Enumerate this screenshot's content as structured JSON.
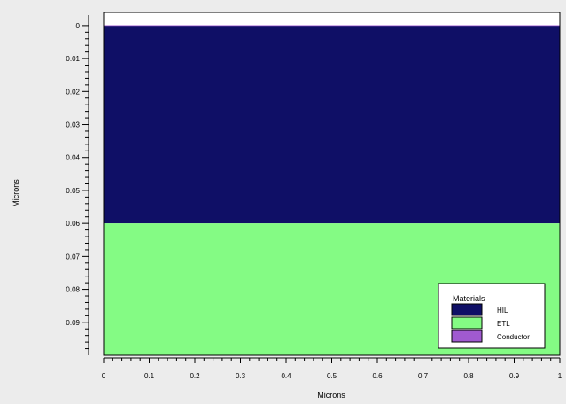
{
  "chart_data": {
    "type": "area",
    "description_type": "material layer cross-section",
    "xlabel": "Microns",
    "ylabel": "Microns",
    "xlim": [
      0,
      1
    ],
    "ylim": [
      -0.004,
      0.1
    ],
    "y_inverted": true,
    "x_ticks": [
      "0",
      "0.1",
      "0.2",
      "0.3",
      "0.4",
      "0.5",
      "0.6",
      "0.7",
      "0.8",
      "0.9",
      "1"
    ],
    "x_tick_values": [
      0,
      0.1,
      0.2,
      0.3,
      0.4,
      0.5,
      0.6,
      0.7,
      0.8,
      0.9,
      1
    ],
    "y_ticks": [
      "0",
      "0.01",
      "0.02",
      "0.03",
      "0.04",
      "0.05",
      "0.06",
      "0.07",
      "0.08",
      "0.09"
    ],
    "y_tick_values": [
      0,
      0.01,
      0.02,
      0.03,
      0.04,
      0.05,
      0.06,
      0.07,
      0.08,
      0.09
    ],
    "regions": [
      {
        "name": "Conductor",
        "y_start": -0.0001,
        "y_end": 0.0001,
        "color": "#a05ad0"
      },
      {
        "name": "HIL",
        "y_start": 0.0001,
        "y_end": 0.06,
        "color": "#0f0f66"
      },
      {
        "name": "ETL",
        "y_start": 0.06,
        "y_end": 0.1,
        "color": "#84fb84"
      }
    ],
    "legend": {
      "title": "Materials",
      "placement": "bottom-right",
      "entries": [
        {
          "label": "HIL",
          "color": "#0f0f66"
        },
        {
          "label": "ETL",
          "color": "#84fb84"
        },
        {
          "label": "Conductor",
          "color": "#a05ad0"
        }
      ]
    },
    "grid": false
  }
}
